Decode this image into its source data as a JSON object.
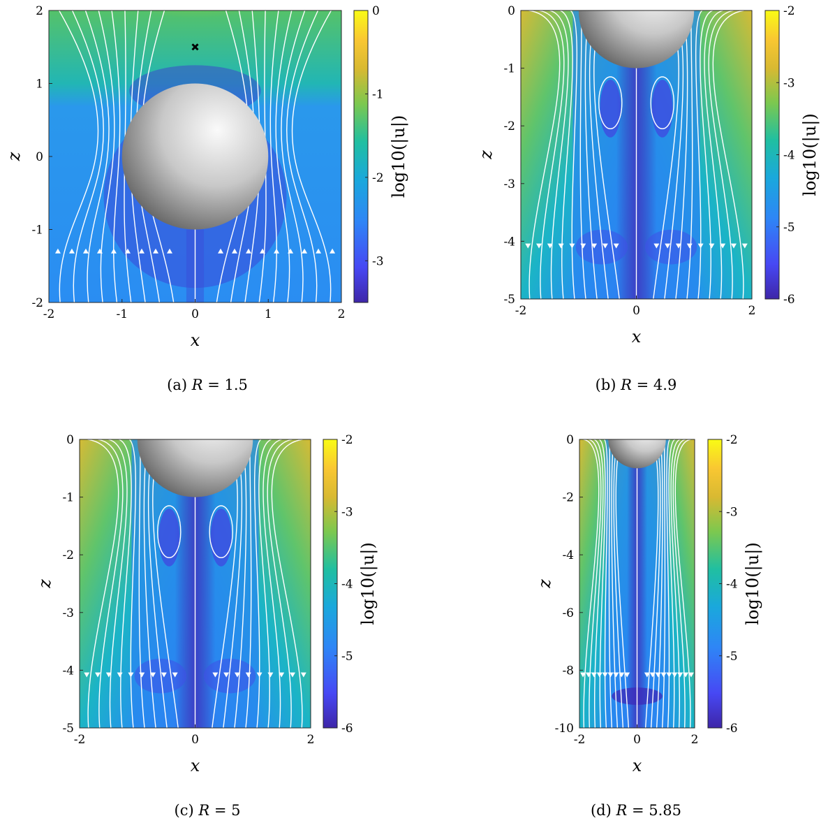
{
  "chart_data": [
    {
      "type": "heatmap",
      "caption": "(a) R = 1.5",
      "caption_prefix": "(a)",
      "caption_var": "R",
      "caption_value": "1.5",
      "xlabel": "x",
      "ylabel": "z",
      "xlim": [
        -2,
        2
      ],
      "ylim": [
        -2,
        2
      ],
      "xticks": [
        -2,
        -1,
        0,
        1,
        2
      ],
      "yticks": [
        -2,
        -1,
        0,
        1,
        2
      ],
      "sphere": {
        "cx": 0,
        "cz": 0,
        "r": 1
      },
      "marker": {
        "x": 0,
        "z": 1.5,
        "symbol": "x"
      },
      "colorbar": {
        "label": "log10(|u|)",
        "min": -3.5,
        "max": 0,
        "ticks": [
          0,
          -1,
          -2,
          -3
        ]
      }
    },
    {
      "type": "heatmap",
      "caption": "(b) R = 4.9",
      "caption_prefix": "(b)",
      "caption_var": "R",
      "caption_value": "4.9",
      "xlabel": "x",
      "ylabel": "z",
      "xlim": [
        -2,
        2
      ],
      "ylim": [
        -5,
        0
      ],
      "xticks": [
        -2,
        0,
        2
      ],
      "yticks": [
        0,
        -1,
        -2,
        -3,
        -4,
        -5
      ],
      "sphere": {
        "cx": 0,
        "cz": 0,
        "r": 1
      },
      "colorbar": {
        "label": "log10(|u|)",
        "min": -6,
        "max": -2,
        "ticks": [
          -2,
          -3,
          -4,
          -5,
          -6
        ]
      }
    },
    {
      "type": "heatmap",
      "caption": "(c) R = 5",
      "caption_prefix": "(c)",
      "caption_var": "R",
      "caption_value": "5",
      "xlabel": "x",
      "ylabel": "z",
      "xlim": [
        -2,
        2
      ],
      "ylim": [
        -5,
        0
      ],
      "xticks": [
        -2,
        0,
        2
      ],
      "yticks": [
        0,
        -1,
        -2,
        -3,
        -4,
        -5
      ],
      "sphere": {
        "cx": 0,
        "cz": 0,
        "r": 1
      },
      "colorbar": {
        "label": "log10(|u|)",
        "min": -6,
        "max": -2,
        "ticks": [
          -2,
          -3,
          -4,
          -5,
          -6
        ]
      }
    },
    {
      "type": "heatmap",
      "caption": "(d) R = 5.85",
      "caption_prefix": "(d)",
      "caption_var": "R",
      "caption_value": "5.85",
      "xlabel": "x",
      "ylabel": "z",
      "xlim": [
        -2,
        2
      ],
      "ylim": [
        -10,
        0
      ],
      "xticks": [
        -2,
        0,
        2
      ],
      "yticks": [
        0,
        -2,
        -4,
        -6,
        -8,
        -10
      ],
      "sphere": {
        "cx": 0,
        "cz": 0,
        "r": 1
      },
      "colorbar": {
        "label": "log10(|u|)",
        "min": -6,
        "max": -2,
        "ticks": [
          -2,
          -3,
          -4,
          -5,
          -6
        ]
      }
    }
  ],
  "colors": {
    "colormap": [
      "#3e26a8",
      "#4748f4",
      "#2e86f6",
      "#1aa8dc",
      "#20bfa1",
      "#7cc84f",
      "#d8b932",
      "#f9d32a",
      "#f9fb15"
    ],
    "streamline": "#ffffff",
    "sphere_light": "#fafafa",
    "sphere_dark": "#4a4a4a"
  }
}
